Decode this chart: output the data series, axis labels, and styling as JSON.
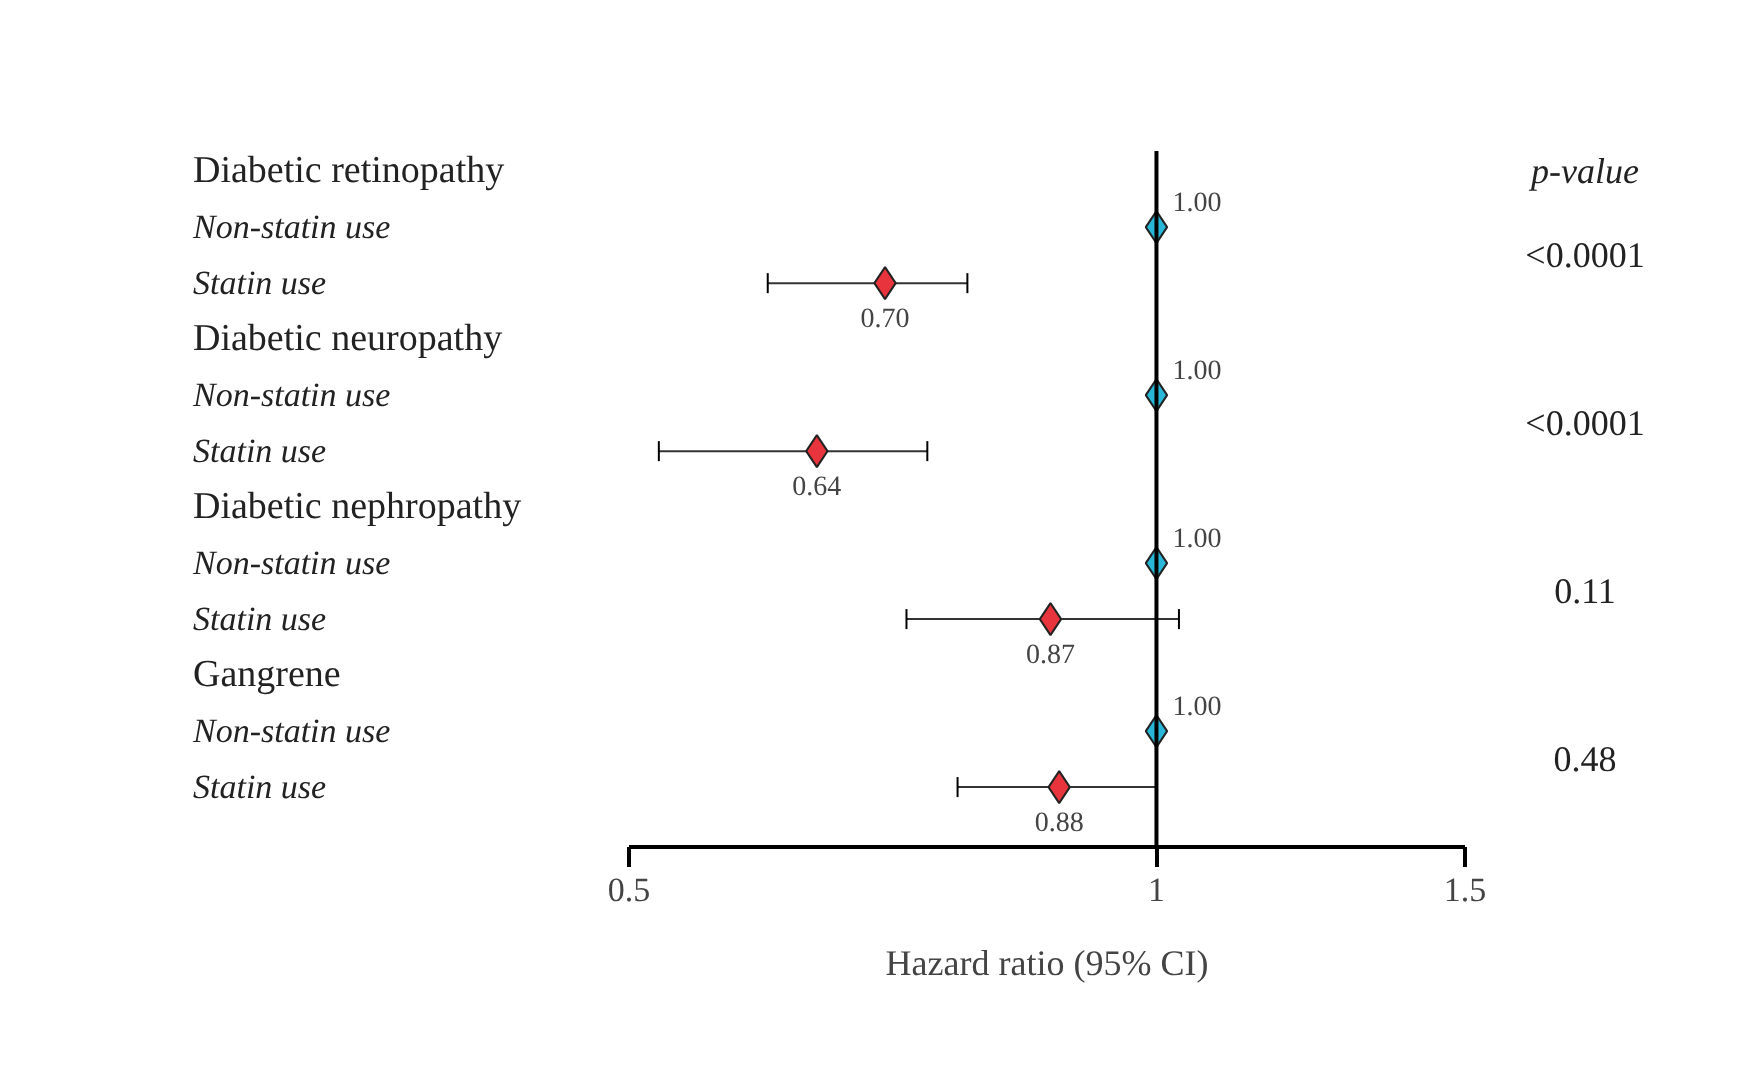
{
  "chart_data": {
    "type": "scatter",
    "orientation": "horizontal",
    "xlabel": "Hazard ratio (95% CI)",
    "categories": [
      "Diabetic retinopathy",
      "Non-statin use",
      "Statin use",
      "Diabetic neuropathy",
      "Non-statin use",
      "Statin use",
      "Diabetic nephropathy",
      "Non-statin use",
      "Statin use",
      "Gangrene",
      "Non-statin use",
      "Statin use"
    ],
    "values": [
      null,
      1.0,
      0.7,
      null,
      1.0,
      0.64,
      null,
      1.0,
      0.87,
      null,
      1.0,
      0.88
    ],
    "colors": [
      "#29b6d8",
      "#29b6d8",
      "#e8343c",
      "#29b6d8",
      "#29b6d8",
      "#e8343c",
      "#29b6d8",
      "#29b6d8",
      "#e8343c",
      "#29b6d8",
      "#29b6d8",
      "#e8343c"
    ],
    "errors": [
      null,
      null,
      [
        0.6,
        0.78
      ],
      null,
      null,
      [
        0.52,
        0.74
      ],
      null,
      null,
      [
        0.72,
        1.03
      ],
      null,
      null,
      [
        0.77,
        1.0
      ]
    ],
    "value_labels": [
      null,
      "1.00",
      "0.70",
      null,
      "1.00",
      "0.64",
      null,
      "1.00",
      "0.87",
      null,
      "1.00",
      "0.88"
    ],
    "marker": "diamond",
    "log": "x",
    "xlim": [
      0.5,
      1.5
    ],
    "xticks": [
      0.5,
      1,
      1.5
    ],
    "grid": false,
    "ref_lines": [
      {
        "axis": "x",
        "value": 1,
        "label": null
      }
    ],
    "annotations": [
      "p-value",
      "<0.0001",
      "<0.0001",
      "0.11",
      "0.48"
    ]
  }
}
